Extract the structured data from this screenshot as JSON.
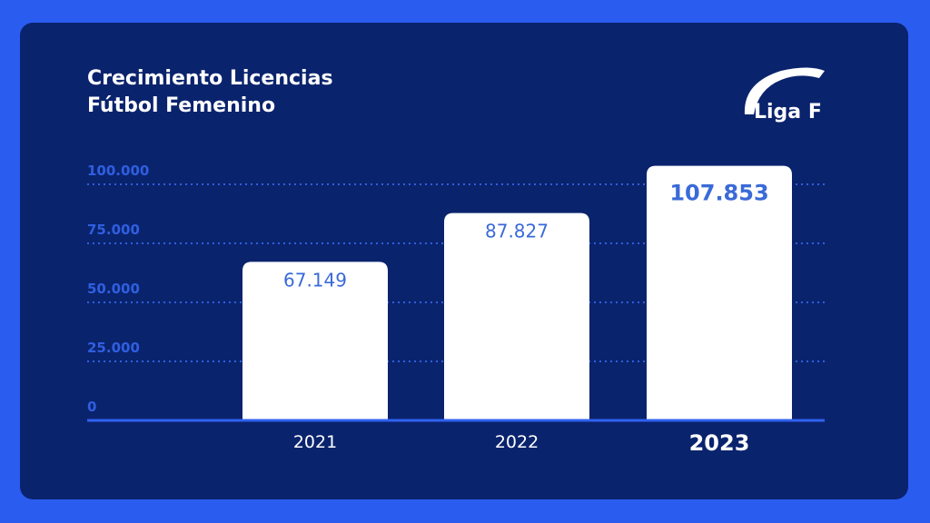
{
  "title_line1": "Crecimiento Licencias",
  "title_line2": "Fútbol Femenino",
  "logo_text": "Liga F",
  "colors": {
    "background": "#2a5cf0",
    "card": "#0a236d",
    "bar": "#ffffff",
    "axis_label": "#2f5fe0",
    "value_label": "#3a6ad8",
    "gridline": "#2f5fe0"
  },
  "chart_data": {
    "type": "bar",
    "categories": [
      "2021",
      "2022",
      "2023"
    ],
    "values": [
      67149,
      87827,
      107853
    ],
    "value_labels": [
      "67.149",
      "87.827",
      "107.853"
    ],
    "yticks": [
      0,
      25000,
      50000,
      75000,
      100000
    ],
    "ytick_labels": [
      "0",
      "25.000",
      "50.000",
      "75.000",
      "100.000"
    ],
    "ylim": [
      0,
      100000
    ],
    "grid": true,
    "title": "Crecimiento Licencias Fútbol Femenino"
  }
}
